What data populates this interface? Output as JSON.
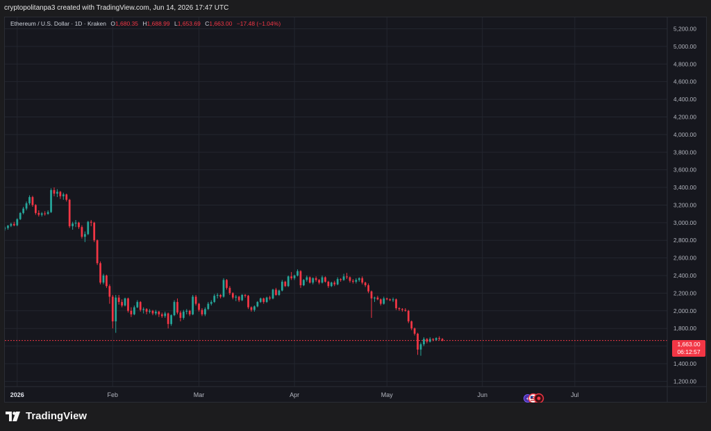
{
  "header": {
    "attribution": "cryptopolitanpa3 created with TradingView.com, Jun 14, 2026 17:47 UTC"
  },
  "legend": {
    "symbol": "Ethereum / U.S. Dollar · 1D · Kraken",
    "o_label": "O",
    "o_value": "1,680.35",
    "h_label": "H",
    "h_value": "1,688.99",
    "l_label": "L",
    "l_value": "1,653.69",
    "c_label": "C",
    "c_value": "1,663.00",
    "change": "−17.48 (−1.04%)"
  },
  "price_tag": {
    "price": "1,663.00",
    "countdown": "06:12:57"
  },
  "footer": {
    "brand": "TradingView"
  },
  "colors": {
    "up": "#26a69a",
    "down": "#f23645",
    "background": "#16171e",
    "grid": "#23262f",
    "axis_text": "#b2b5be"
  },
  "chart_data": {
    "type": "candlestick",
    "title": "Ethereum / U.S. Dollar · 1D · Kraken",
    "y_ticks": [
      "1,200.00",
      "1,400.00",
      "1,600.00",
      "1,800.00",
      "2,000.00",
      "2,200.00",
      "2,400.00",
      "2,600.00",
      "2,800.00",
      "3,000.00",
      "3,200.00",
      "3,400.00",
      "3,600.00",
      "3,800.00",
      "4,000.00",
      "4,200.00",
      "4,400.00",
      "4,600.00",
      "4,800.00",
      "5,000.00",
      "5,200.00"
    ],
    "y_tick_values": [
      1200,
      1400,
      1600,
      1800,
      2000,
      2200,
      2400,
      2600,
      2800,
      3000,
      3200,
      3400,
      3600,
      3800,
      4000,
      4200,
      4400,
      4600,
      4800,
      5000,
      5200
    ],
    "ylim": [
      1140,
      5330
    ],
    "x_range": [
      "2025-12-28",
      "2026-07-31"
    ],
    "x_ticks": [
      {
        "label": "2026",
        "date": "2026-01-01"
      },
      {
        "label": "Feb",
        "date": "2026-02-01"
      },
      {
        "label": "Mar",
        "date": "2026-03-01"
      },
      {
        "label": "Apr",
        "date": "2026-04-01"
      },
      {
        "label": "May",
        "date": "2026-05-01"
      },
      {
        "label": "Jun",
        "date": "2026-06-01"
      },
      {
        "label": "Jul",
        "date": "2026-07-01"
      }
    ],
    "last_price": 1663.0,
    "candles_start": "2025-12-28",
    "candles": [
      [
        2935,
        2955,
        2910,
        2940
      ],
      [
        2940,
        2975,
        2920,
        2965
      ],
      [
        2965,
        3000,
        2950,
        2985
      ],
      [
        2985,
        3010,
        2960,
        2970
      ],
      [
        2970,
        3050,
        2960,
        3040
      ],
      [
        3040,
        3120,
        3030,
        3110
      ],
      [
        3110,
        3180,
        3095,
        3160
      ],
      [
        3160,
        3240,
        3140,
        3220
      ],
      [
        3220,
        3310,
        3200,
        3290
      ],
      [
        3290,
        3305,
        3180,
        3200
      ],
      [
        3200,
        3210,
        3090,
        3110
      ],
      [
        3110,
        3140,
        3070,
        3090
      ],
      [
        3090,
        3120,
        3070,
        3105
      ],
      [
        3105,
        3130,
        3080,
        3100
      ],
      [
        3100,
        3140,
        3090,
        3120
      ],
      [
        3120,
        3390,
        3110,
        3370
      ],
      [
        3370,
        3400,
        3300,
        3330
      ],
      [
        3330,
        3380,
        3290,
        3350
      ],
      [
        3350,
        3360,
        3270,
        3300
      ],
      [
        3300,
        3340,
        3260,
        3320
      ],
      [
        3320,
        3330,
        3240,
        3260
      ],
      [
        3260,
        3270,
        2940,
        2960
      ],
      [
        2960,
        3010,
        2920,
        2990
      ],
      [
        2990,
        3030,
        2950,
        3000
      ],
      [
        3000,
        3010,
        2930,
        2950
      ],
      [
        2950,
        2970,
        2820,
        2840
      ],
      [
        2840,
        2900,
        2780,
        2870
      ],
      [
        2870,
        3020,
        2860,
        3010
      ],
      [
        3010,
        3030,
        2960,
        3000
      ],
      [
        3000,
        3010,
        2780,
        2800
      ],
      [
        2800,
        2810,
        2520,
        2540
      ],
      [
        2540,
        2560,
        2300,
        2320
      ],
      [
        2320,
        2420,
        2300,
        2400
      ],
      [
        2400,
        2410,
        2260,
        2280
      ],
      [
        2280,
        2300,
        2080,
        2160
      ],
      [
        2160,
        2180,
        1800,
        1880
      ],
      [
        1880,
        2180,
        1750,
        2150
      ],
      [
        2150,
        2180,
        2070,
        2100
      ],
      [
        2100,
        2130,
        2040,
        2060
      ],
      [
        2060,
        2150,
        2050,
        2140
      ],
      [
        2140,
        2150,
        1980,
        2000
      ],
      [
        2000,
        2040,
        1930,
        1960
      ],
      [
        1960,
        2060,
        1950,
        2040
      ],
      [
        2040,
        2120,
        2030,
        2100
      ],
      [
        2100,
        2110,
        1990,
        2010
      ],
      [
        2010,
        2040,
        1970,
        2020
      ],
      [
        2020,
        2030,
        1960,
        1990
      ],
      [
        1990,
        2020,
        1970,
        2000
      ],
      [
        2000,
        2010,
        1950,
        1970
      ],
      [
        1970,
        2010,
        1950,
        1990
      ],
      [
        1990,
        2000,
        1930,
        1960
      ],
      [
        1960,
        1980,
        1920,
        1940
      ],
      [
        1940,
        1990,
        1920,
        1970
      ],
      [
        1970,
        1980,
        1800,
        1850
      ],
      [
        1850,
        1960,
        1830,
        1950
      ],
      [
        1950,
        2120,
        1940,
        2100
      ],
      [
        2100,
        2140,
        1960,
        1980
      ],
      [
        1980,
        2000,
        1880,
        1920
      ],
      [
        1920,
        2010,
        1900,
        1990
      ],
      [
        1990,
        2020,
        1960,
        2000
      ],
      [
        2000,
        2010,
        1940,
        1960
      ],
      [
        1960,
        2180,
        1950,
        2160
      ],
      [
        2160,
        2180,
        2060,
        2080
      ],
      [
        2080,
        2090,
        1990,
        2010
      ],
      [
        2010,
        2030,
        1940,
        1960
      ],
      [
        1960,
        2040,
        1940,
        2020
      ],
      [
        2020,
        2100,
        2010,
        2080
      ],
      [
        2080,
        2120,
        2060,
        2100
      ],
      [
        2100,
        2190,
        2090,
        2170
      ],
      [
        2170,
        2200,
        2140,
        2180
      ],
      [
        2180,
        2190,
        2140,
        2160
      ],
      [
        2160,
        2370,
        2150,
        2350
      ],
      [
        2350,
        2360,
        2240,
        2260
      ],
      [
        2260,
        2280,
        2180,
        2200
      ],
      [
        2200,
        2210,
        2130,
        2150
      ],
      [
        2150,
        2180,
        2110,
        2160
      ],
      [
        2160,
        2170,
        2100,
        2120
      ],
      [
        2120,
        2190,
        2110,
        2180
      ],
      [
        2180,
        2190,
        2150,
        2170
      ],
      [
        2170,
        2180,
        2020,
        2040
      ],
      [
        2040,
        2050,
        1990,
        2010
      ],
      [
        2010,
        2060,
        1990,
        2050
      ],
      [
        2050,
        2110,
        2040,
        2100
      ],
      [
        2100,
        2150,
        2090,
        2140
      ],
      [
        2140,
        2150,
        2080,
        2100
      ],
      [
        2100,
        2160,
        2090,
        2150
      ],
      [
        2150,
        2170,
        2120,
        2140
      ],
      [
        2140,
        2250,
        2130,
        2240
      ],
      [
        2240,
        2260,
        2170,
        2180
      ],
      [
        2180,
        2240,
        2170,
        2230
      ],
      [
        2230,
        2350,
        2220,
        2330
      ],
      [
        2330,
        2340,
        2270,
        2280
      ],
      [
        2280,
        2400,
        2270,
        2390
      ],
      [
        2390,
        2440,
        2350,
        2370
      ],
      [
        2370,
        2410,
        2350,
        2400
      ],
      [
        2400,
        2470,
        2390,
        2450
      ],
      [
        2450,
        2460,
        2260,
        2290
      ],
      [
        2290,
        2360,
        2280,
        2350
      ],
      [
        2350,
        2400,
        2330,
        2380
      ],
      [
        2380,
        2390,
        2310,
        2320
      ],
      [
        2320,
        2380,
        2300,
        2370
      ],
      [
        2370,
        2390,
        2330,
        2350
      ],
      [
        2350,
        2360,
        2300,
        2320
      ],
      [
        2320,
        2400,
        2310,
        2380
      ],
      [
        2380,
        2390,
        2320,
        2330
      ],
      [
        2330,
        2340,
        2260,
        2280
      ],
      [
        2280,
        2330,
        2270,
        2320
      ],
      [
        2320,
        2340,
        2280,
        2300
      ],
      [
        2300,
        2380,
        2290,
        2360
      ],
      [
        2360,
        2370,
        2330,
        2350
      ],
      [
        2350,
        2420,
        2340,
        2390
      ],
      [
        2390,
        2430,
        2360,
        2380
      ],
      [
        2380,
        2390,
        2320,
        2340
      ],
      [
        2340,
        2360,
        2310,
        2330
      ],
      [
        2330,
        2370,
        2310,
        2350
      ],
      [
        2350,
        2380,
        2330,
        2370
      ],
      [
        2370,
        2390,
        2300,
        2320
      ],
      [
        2320,
        2330,
        2270,
        2290
      ],
      [
        2290,
        2310,
        2200,
        2220
      ],
      [
        2220,
        2230,
        1920,
        2140
      ],
      [
        2140,
        2160,
        2100,
        2150
      ],
      [
        2150,
        2170,
        2120,
        2130
      ],
      [
        2130,
        2140,
        2060,
        2080
      ],
      [
        2080,
        2160,
        2070,
        2140
      ],
      [
        2140,
        2150,
        2120,
        2130
      ],
      [
        2130,
        2140,
        2110,
        2120
      ],
      [
        2120,
        2150,
        2100,
        2130
      ],
      [
        2130,
        2140,
        2010,
        2030
      ],
      [
        2030,
        2040,
        2000,
        2020
      ],
      [
        2020,
        2030,
        1990,
        2010
      ],
      [
        2010,
        2030,
        1990,
        2000
      ],
      [
        2000,
        2010,
        1860,
        1880
      ],
      [
        1880,
        1890,
        1780,
        1800
      ],
      [
        1800,
        1810,
        1720,
        1740
      ],
      [
        1740,
        1750,
        1500,
        1560
      ],
      [
        1560,
        1640,
        1490,
        1620
      ],
      [
        1620,
        1700,
        1600,
        1680
      ],
      [
        1680,
        1690,
        1630,
        1650
      ],
      [
        1650,
        1700,
        1640,
        1680
      ],
      [
        1680,
        1690,
        1655,
        1670
      ],
      [
        1670,
        1700,
        1660,
        1690
      ],
      [
        1690,
        1710,
        1665,
        1680
      ],
      [
        1680,
        1690,
        1654,
        1663
      ]
    ]
  }
}
